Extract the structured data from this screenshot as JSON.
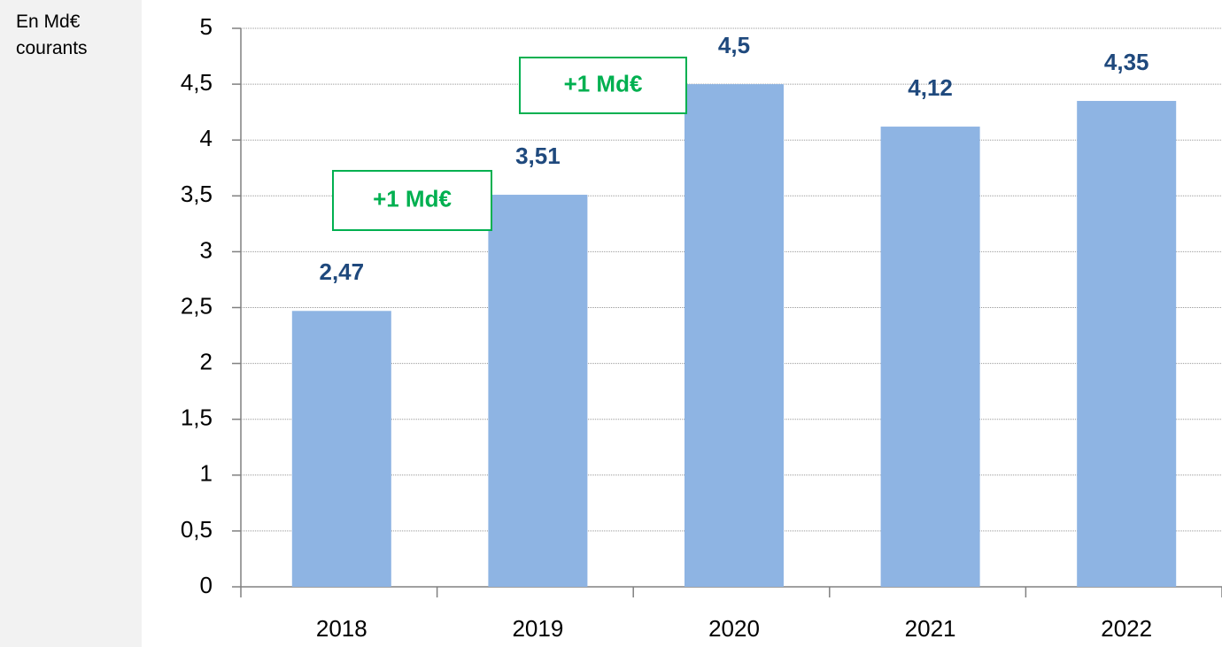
{
  "chart_data": {
    "type": "bar",
    "y_label": "En Md€ courants",
    "categories": [
      "2018",
      "2019",
      "2020",
      "2021",
      "2022"
    ],
    "values": [
      2.47,
      3.51,
      4.5,
      4.12,
      4.35
    ],
    "value_labels": [
      "2,47",
      "3,51",
      "4,5",
      "4,12",
      "4,35"
    ],
    "color": "#8eb4e3",
    "ylim": [
      0,
      5
    ],
    "yticks": [
      0,
      {
        "value": 0.5,
        "label": "0,5"
      },
      1,
      {
        "value": 1.5,
        "label": "1,5"
      },
      2,
      {
        "value": 2.5,
        "label": "2,5"
      },
      3,
      {
        "value": 3.5,
        "label": "3,5"
      },
      4,
      {
        "value": 4.5,
        "label": "4,5"
      },
      5
    ],
    "grid": true,
    "annotations": [
      {
        "text": "+1 Md€"
      },
      {
        "text": "+1 Md€"
      }
    ]
  }
}
